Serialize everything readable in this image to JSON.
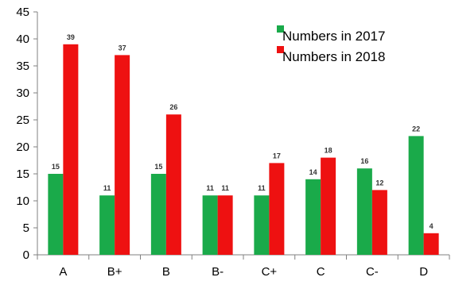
{
  "chart_data": {
    "type": "bar",
    "title": "",
    "xlabel": "",
    "ylabel": "",
    "categories": [
      "A",
      "B+",
      "B",
      "B-",
      "C+",
      "C",
      "C-",
      "D"
    ],
    "series": [
      {
        "name": "Numbers in 2017",
        "color": "#1aaa4a",
        "values": [
          15,
          11,
          15,
          11,
          11,
          14,
          16,
          22
        ]
      },
      {
        "name": "Numbers in 2018",
        "color": "#ee1111",
        "values": [
          39,
          37,
          26,
          11,
          17,
          18,
          12,
          4
        ]
      }
    ],
    "ylim": [
      0,
      45
    ],
    "yticks": [
      0,
      5,
      10,
      15,
      20,
      25,
      30,
      35,
      40,
      45
    ],
    "grid": false,
    "legend_position": "top-right",
    "data_labels": true
  }
}
